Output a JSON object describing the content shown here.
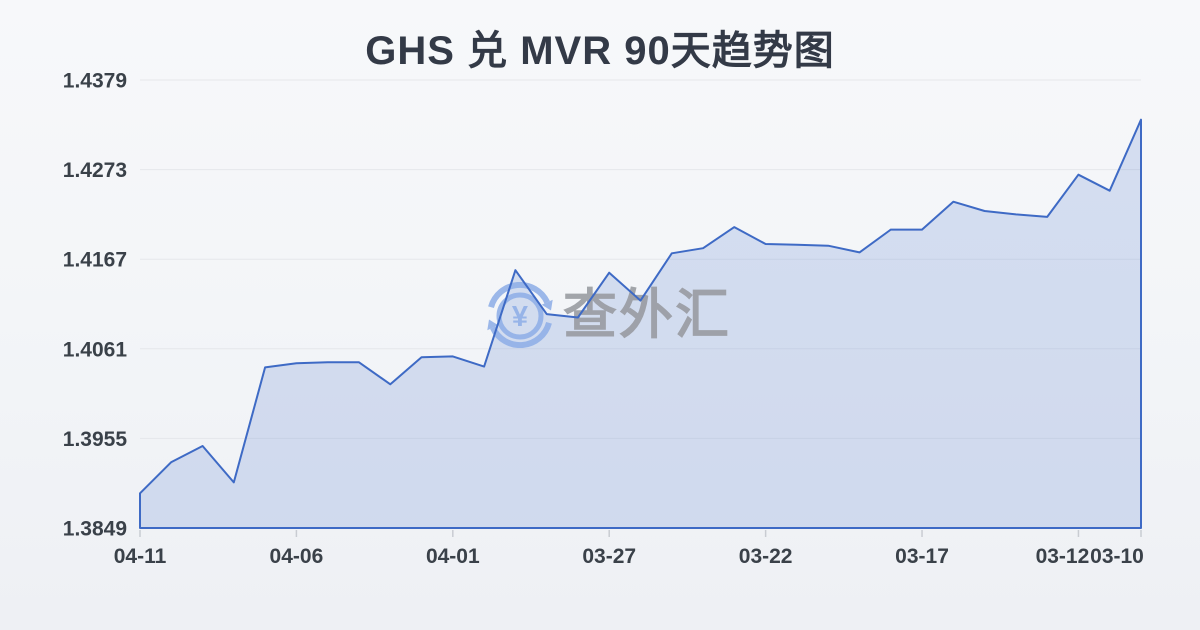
{
  "title": "GHS 兑 MVR 90天趋势图",
  "watermark": {
    "icon": "yen-exchange-icon",
    "text": "查外汇"
  },
  "chart_data": {
    "type": "area",
    "title": "GHS 兑 MVR 90天趋势图",
    "x": [
      "04-11",
      "04-10",
      "04-09",
      "04-08",
      "04-07",
      "04-06",
      "04-05",
      "04-04",
      "04-03",
      "04-02",
      "04-01",
      "03-31",
      "03-30",
      "03-29",
      "03-28",
      "03-27",
      "03-26",
      "03-25",
      "03-24",
      "03-23",
      "03-22",
      "03-21",
      "03-20",
      "03-19",
      "03-18",
      "03-17",
      "03-16",
      "03-15",
      "03-14",
      "03-13",
      "03-12",
      "03-11",
      "03-10"
    ],
    "values": [
      1.389,
      1.3927,
      1.3946,
      1.3903,
      1.4039,
      1.4044,
      1.4045,
      1.4045,
      1.4019,
      1.4051,
      1.4052,
      1.404,
      1.4154,
      1.4102,
      1.4098,
      1.4151,
      1.4118,
      1.4174,
      1.418,
      1.4205,
      1.4185,
      1.4184,
      1.4183,
      1.4175,
      1.4202,
      1.4202,
      1.4235,
      1.4224,
      1.422,
      1.4217,
      1.4267,
      1.4248,
      1.4332
    ],
    "y_tick_labels": [
      "1.4379",
      "1.4273",
      "1.4167",
      "1.4061",
      "1.3955",
      "1.3849"
    ],
    "x_tick_labels": [
      "04-11",
      "04-06",
      "04-01",
      "03-27",
      "03-22",
      "03-17",
      "03-12",
      "03-10"
    ],
    "x_tick_indices": [
      0,
      5,
      10,
      15,
      20,
      25,
      30,
      32
    ],
    "ylim": [
      1.3849,
      1.4379
    ],
    "xlabel": "",
    "ylabel": "",
    "grid": true,
    "legend": false,
    "colors": {
      "line": "#3e6ac5",
      "fill": "rgba(96,134,208,0.22)",
      "grid": "#e5e7eb",
      "axis_text": "#3a4149",
      "tick": "#c9ccd2",
      "title": "#333a47",
      "watermark_text": "#979aa0",
      "watermark_icon": "#8fafe8",
      "background": "#f4f5f8"
    }
  }
}
